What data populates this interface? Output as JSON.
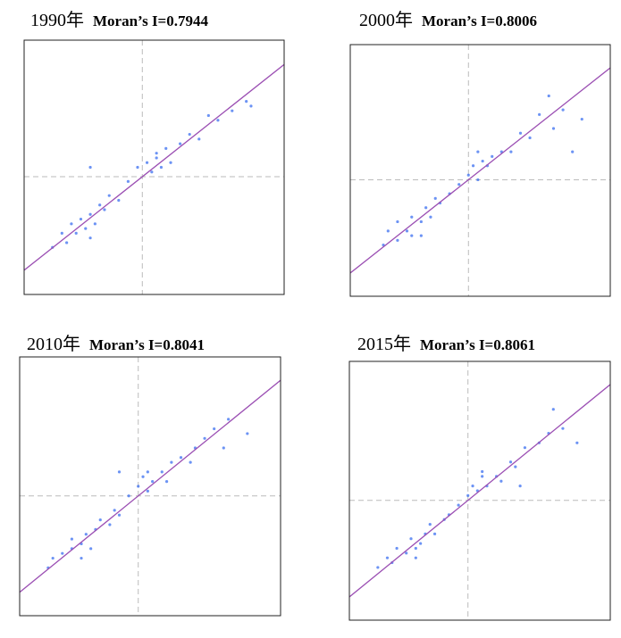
{
  "chart_data": [
    {
      "type": "scatter",
      "title": "1990年",
      "subtitle": "Moran’s I=0.7944",
      "line_slope": 0.7944,
      "x": [
        -1.9,
        -1.7,
        -1.6,
        -1.5,
        -1.4,
        -1.3,
        -1.2,
        -1.1,
        -1.0,
        -0.9,
        -0.8,
        -0.7,
        -0.5,
        -0.3,
        -0.1,
        0.1,
        0.2,
        0.3,
        0.4,
        0.5,
        0.6,
        0.8,
        1.0,
        1.2,
        1.4,
        1.6,
        1.9,
        2.2,
        -1.1,
        0.3,
        -1.1,
        2.3
      ],
      "y": [
        -1.5,
        -1.2,
        -1.4,
        -1.0,
        -1.2,
        -0.9,
        -1.1,
        -0.8,
        -1.0,
        -0.6,
        -0.7,
        -0.4,
        -0.5,
        -0.1,
        0.2,
        0.3,
        0.1,
        0.4,
        0.2,
        0.6,
        0.3,
        0.7,
        0.9,
        0.8,
        1.3,
        1.2,
        1.4,
        1.6,
        -1.3,
        0.5,
        0.2,
        1.5
      ],
      "xlim": [
        -2.5,
        3
      ],
      "ylim": [
        -2.5,
        2.9
      ],
      "axvline": 0,
      "axhline": 0,
      "color": "#3b6ff0",
      "line_color": "#9b4fb3"
    },
    {
      "type": "scatter",
      "title": "2000年",
      "subtitle": "Moran’s I=0.8006",
      "line_slope": 0.8006,
      "x": [
        -1.8,
        -1.7,
        -1.5,
        -1.5,
        -1.3,
        -1.2,
        -1.2,
        -1.0,
        -0.9,
        -0.8,
        -0.7,
        -0.6,
        -0.4,
        -0.2,
        0.0,
        0.1,
        0.2,
        0.3,
        0.4,
        0.5,
        0.7,
        0.9,
        1.1,
        1.3,
        1.5,
        1.8,
        2.0,
        2.4,
        -1.0,
        0.2,
        1.7,
        2.2
      ],
      "y": [
        -1.4,
        -1.1,
        -1.3,
        -0.9,
        -1.1,
        -0.8,
        -1.2,
        -0.9,
        -0.6,
        -0.8,
        -0.4,
        -0.5,
        -0.3,
        -0.1,
        0.1,
        0.3,
        0.0,
        0.4,
        0.3,
        0.5,
        0.6,
        0.6,
        1.0,
        0.9,
        1.4,
        1.1,
        1.5,
        1.3,
        -1.2,
        0.6,
        1.8,
        0.6
      ],
      "xlim": [
        -2.5,
        3
      ],
      "ylim": [
        -2.5,
        2.9
      ],
      "axvline": 0,
      "axhline": 0,
      "color": "#3b6ff0",
      "line_color": "#9b4fb3"
    },
    {
      "type": "scatter",
      "title": "2010年",
      "subtitle": "Moran’s I=0.8041",
      "line_slope": 0.8041,
      "x": [
        -1.9,
        -1.8,
        -1.6,
        -1.4,
        -1.4,
        -1.2,
        -1.1,
        -1.0,
        -0.9,
        -0.8,
        -0.6,
        -0.5,
        -0.4,
        -0.2,
        0.0,
        0.1,
        0.2,
        0.3,
        0.5,
        0.6,
        0.7,
        0.9,
        1.1,
        1.2,
        1.4,
        1.6,
        1.8,
        2.3,
        -1.2,
        0.2,
        1.9,
        -0.4
      ],
      "y": [
        -1.5,
        -1.3,
        -1.2,
        -1.1,
        -0.9,
        -1.0,
        -0.8,
        -1.1,
        -0.7,
        -0.5,
        -0.6,
        -0.3,
        -0.4,
        0.0,
        0.2,
        0.4,
        0.1,
        0.3,
        0.5,
        0.3,
        0.7,
        0.8,
        0.7,
        1.0,
        1.2,
        1.4,
        1.0,
        1.3,
        -1.3,
        0.5,
        1.6,
        0.5
      ],
      "xlim": [
        -2.5,
        3
      ],
      "ylim": [
        -2.5,
        2.9
      ],
      "axvline": 0,
      "axhline": 0,
      "color": "#3b6ff0",
      "line_color": "#9b4fb3"
    },
    {
      "type": "scatter",
      "title": "2015年",
      "subtitle": "Moran’s I=0.8061",
      "line_slope": 0.8061,
      "x": [
        -1.9,
        -1.7,
        -1.6,
        -1.5,
        -1.3,
        -1.2,
        -1.1,
        -1.0,
        -0.9,
        -0.8,
        -0.7,
        -0.5,
        -0.4,
        -0.2,
        0.0,
        0.1,
        0.2,
        0.3,
        0.4,
        0.6,
        0.7,
        0.9,
        1.0,
        1.2,
        1.5,
        1.7,
        2.0,
        2.3,
        -1.1,
        0.3,
        1.8,
        1.1
      ],
      "y": [
        -1.4,
        -1.2,
        -1.3,
        -1.0,
        -1.1,
        -0.8,
        -1.0,
        -0.9,
        -0.7,
        -0.5,
        -0.7,
        -0.4,
        -0.3,
        -0.1,
        0.1,
        0.3,
        0.2,
        0.5,
        0.3,
        0.5,
        0.4,
        0.8,
        0.7,
        1.1,
        1.2,
        1.4,
        1.5,
        1.2,
        -1.2,
        0.6,
        1.9,
        0.3
      ],
      "xlim": [
        -2.5,
        3
      ],
      "ylim": [
        -2.5,
        2.9
      ],
      "axvline": 0,
      "axhline": 0,
      "color": "#3b6ff0",
      "line_color": "#9b4fb3"
    }
  ]
}
